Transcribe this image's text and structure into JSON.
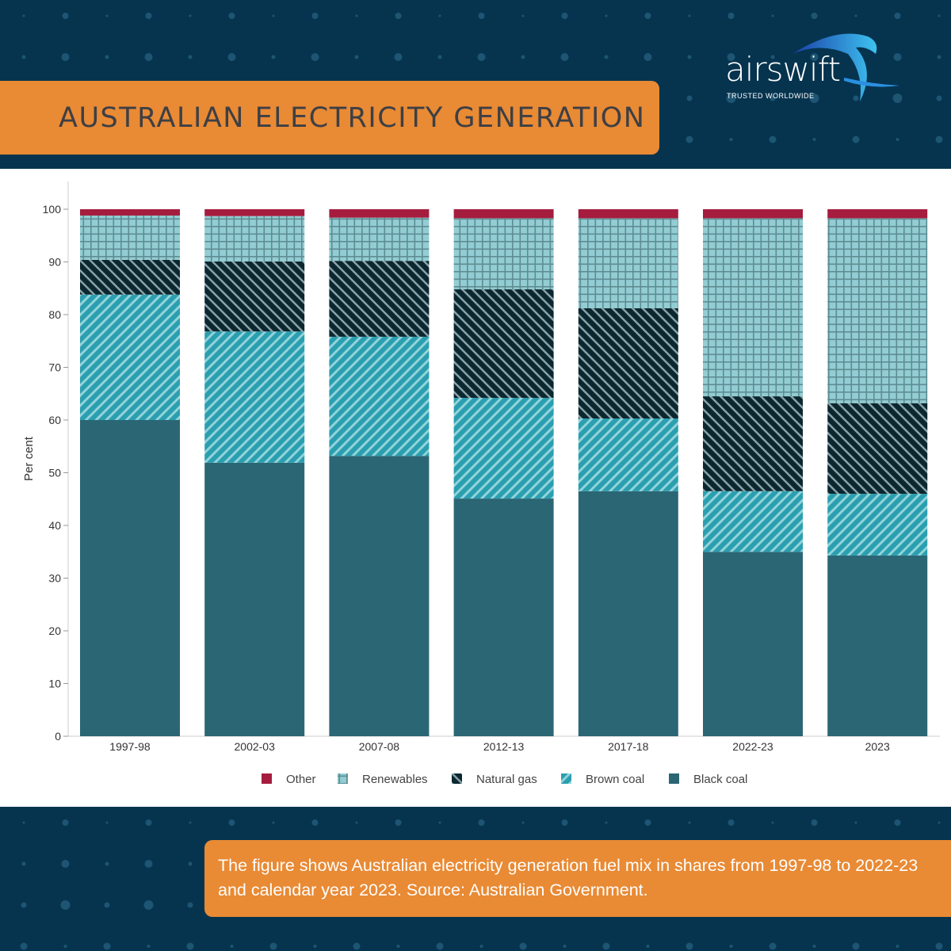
{
  "header": {
    "title": "AUSTRALIAN ELECTRICITY GENERATION",
    "logo_text": "airswift",
    "logo_tagline": "TRUSTED WORLDWIDE"
  },
  "caption": "The figure shows Australian electricity generation fuel mix in shares from 1997-98 to 2022-23 and calendar year 2023. Source: Australian Government.",
  "colors": {
    "background": "#06344f",
    "accent": "#e98a34"
  },
  "chart_data": {
    "type": "bar",
    "stacked": true,
    "ylabel": "Per cent",
    "xlabel": "",
    "ylim": [
      0,
      100
    ],
    "yticks": [
      0,
      10,
      20,
      30,
      40,
      50,
      60,
      70,
      80,
      90,
      100
    ],
    "categories": [
      "1997-98",
      "2002-03",
      "2007-08",
      "2012-13",
      "2017-18",
      "2022-23",
      "2023"
    ],
    "legend_position": "bottom",
    "legend_order": [
      "Other",
      "Renewables",
      "Natural gas",
      "Brown coal",
      "Black coal"
    ],
    "series": [
      {
        "name": "Black coal",
        "color": "#2b6675",
        "pattern": "solid",
        "values": [
          60.0,
          51.9,
          53.2,
          45.1,
          46.5,
          35.0,
          34.3
        ]
      },
      {
        "name": "Brown coal",
        "color": "#2a9fb0",
        "pattern": "diagonal",
        "values": [
          23.8,
          24.9,
          22.6,
          19.1,
          13.8,
          11.5,
          11.7
        ]
      },
      {
        "name": "Natural gas",
        "color": "#0b2730",
        "pattern": "back-diagonal",
        "values": [
          6.6,
          13.3,
          14.4,
          20.6,
          20.9,
          18.0,
          17.2
        ]
      },
      {
        "name": "Renewables",
        "color": "#92cdd3",
        "pattern": "grid",
        "values": [
          8.4,
          8.6,
          8.2,
          13.5,
          17.1,
          33.8,
          35.1
        ]
      },
      {
        "name": "Other",
        "color": "#a51c3e",
        "pattern": "solid",
        "values": [
          1.2,
          1.3,
          1.6,
          1.7,
          1.7,
          1.7,
          1.7
        ]
      }
    ]
  }
}
